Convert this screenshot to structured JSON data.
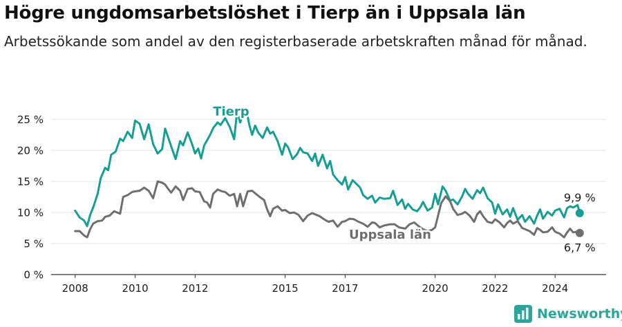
{
  "title": "Högre ungdomsarbetslöshet i Tierp än i Uppsala län",
  "subtitle": "Arbetssökande som andel av den registerbaserade arbetskraften månad för månad.",
  "brand": "Newsworthy",
  "colors": {
    "tierp": "#159e94",
    "uppsala": "#6e6e6e",
    "grid": "#e3e3e3",
    "axis": "#333333",
    "brand": "#2aa69a"
  },
  "chart_data": {
    "type": "line",
    "title": "Högre ungdomsarbetslöshet i Tierp än i Uppsala län",
    "xlabel": "",
    "ylabel": "",
    "xlim": [
      2007.2,
      2025.7
    ],
    "ylim": [
      0,
      27
    ],
    "y_ticks": [
      0,
      5,
      10,
      15,
      20,
      25
    ],
    "y_tick_labels": [
      "0 %",
      "5 %",
      "10 %",
      "15 %",
      "20 %",
      "25 %"
    ],
    "x_ticks": [
      2008,
      2010,
      2012,
      2015,
      2017,
      2020,
      2022,
      2024
    ],
    "x_tick_labels": [
      "2008",
      "2010",
      "2012",
      "2015",
      "2017",
      "2020",
      "2022",
      "2024"
    ],
    "series": [
      {
        "name": "Tierp",
        "label": "Tierp",
        "end_label": "9,9 %",
        "x": [
          2008.0,
          2008.15,
          2008.3,
          2008.4,
          2008.5,
          2008.6,
          2008.75,
          2008.85,
          2009.0,
          2009.1,
          2009.2,
          2009.35,
          2009.5,
          2009.6,
          2009.75,
          2009.9,
          2010.0,
          2010.15,
          2010.3,
          2010.45,
          2010.6,
          2010.75,
          2010.9,
          2011.0,
          2011.1,
          2011.2,
          2011.35,
          2011.5,
          2011.6,
          2011.75,
          2011.9,
          2012.0,
          2012.1,
          2012.2,
          2012.3,
          2012.5,
          2012.6,
          2012.75,
          2012.85,
          2013.0,
          2013.15,
          2013.3,
          2013.4,
          2013.5,
          2013.7,
          2013.8,
          2013.9,
          2014.0,
          2014.1,
          2014.25,
          2014.4,
          2014.5,
          2014.6,
          2014.75,
          2014.9,
          2015.0,
          2015.1,
          2015.25,
          2015.4,
          2015.5,
          2015.6,
          2015.75,
          2015.9,
          2016.0,
          2016.1,
          2016.25,
          2016.4,
          2016.5,
          2016.6,
          2016.75,
          2016.9,
          2017.0,
          2017.1,
          2017.25,
          2017.4,
          2017.5,
          2017.6,
          2017.75,
          2017.9,
          2018.0,
          2018.15,
          2018.3,
          2018.5,
          2018.6,
          2018.75,
          2018.9,
          2019.0,
          2019.1,
          2019.25,
          2019.4,
          2019.5,
          2019.6,
          2019.75,
          2019.9,
          2020.0,
          2020.1,
          2020.25,
          2020.35,
          2020.5,
          2020.6,
          2020.75,
          2020.9,
          2021.0,
          2021.1,
          2021.25,
          2021.4,
          2021.5,
          2021.6,
          2021.75,
          2021.9,
          2022.0,
          2022.1,
          2022.25,
          2022.4,
          2022.5,
          2022.6,
          2022.75,
          2022.9,
          2023.0,
          2023.15,
          2023.3,
          2023.4,
          2023.5,
          2023.6,
          2023.75,
          2023.9,
          2024.0,
          2024.15,
          2024.3,
          2024.4,
          2024.5,
          2024.6,
          2024.75,
          2024.82
        ],
        "values": [
          10.3,
          9.2,
          8.7,
          7.8,
          9.6,
          10.8,
          13.0,
          15.5,
          17.2,
          16.8,
          19.3,
          19.8,
          21.9,
          21.5,
          23.0,
          22.0,
          24.8,
          24.3,
          21.8,
          24.2,
          21.0,
          19.5,
          20.2,
          23.5,
          22.1,
          20.7,
          18.6,
          21.5,
          20.8,
          22.9,
          21.0,
          19.5,
          20.3,
          18.7,
          20.8,
          22.5,
          23.6,
          24.5,
          24.1,
          25.2,
          23.8,
          21.8,
          26.3,
          24.5,
          26.8,
          24.2,
          22.5,
          24.0,
          22.9,
          22.0,
          23.7,
          22.7,
          23.0,
          21.5,
          19.3,
          21.1,
          20.5,
          18.6,
          19.4,
          20.4,
          19.7,
          19.5,
          18.3,
          19.5,
          17.5,
          19.3,
          17.1,
          18.3,
          16.1,
          15.2,
          14.5,
          15.7,
          13.7,
          15.2,
          14.5,
          14.0,
          12.8,
          12.2,
          12.7,
          11.6,
          12.4,
          12.2,
          12.3,
          13.5,
          11.2,
          12.1,
          10.6,
          11.4,
          10.5,
          10.2,
          10.8,
          11.7,
          10.3,
          10.8,
          13.0,
          11.3,
          14.2,
          13.5,
          11.9,
          12.1,
          11.3,
          12.6,
          13.8,
          13.0,
          12.2,
          13.6,
          13.1,
          14.0,
          12.3,
          11.6,
          9.8,
          11.3,
          9.7,
          10.5,
          9.3,
          10.7,
          8.8,
          9.6,
          8.5,
          9.4,
          8.2,
          9.5,
          10.5,
          9.0,
          10.1,
          9.5,
          10.3,
          10.6,
          9.2,
          10.7,
          11.0,
          10.8,
          11.2,
          9.9
        ]
      },
      {
        "name": "Uppsala län",
        "label": "Uppsala län",
        "end_label": "6,7 %",
        "x": [
          2008.0,
          2008.15,
          2008.3,
          2008.4,
          2008.5,
          2008.6,
          2008.75,
          2008.9,
          2009.0,
          2009.15,
          2009.3,
          2009.5,
          2009.6,
          2009.75,
          2009.9,
          2010.0,
          2010.15,
          2010.3,
          2010.45,
          2010.6,
          2010.75,
          2010.9,
          2011.0,
          2011.1,
          2011.2,
          2011.35,
          2011.5,
          2011.6,
          2011.75,
          2011.9,
          2012.0,
          2012.15,
          2012.3,
          2012.4,
          2012.5,
          2012.6,
          2012.75,
          2012.9,
          2013.0,
          2013.15,
          2013.3,
          2013.4,
          2013.5,
          2013.6,
          2013.75,
          2013.9,
          2014.0,
          2014.15,
          2014.3,
          2014.4,
          2014.5,
          2014.6,
          2014.75,
          2014.9,
          2015.0,
          2015.15,
          2015.3,
          2015.45,
          2015.6,
          2015.75,
          2015.9,
          2016.0,
          2016.15,
          2016.3,
          2016.45,
          2016.6,
          2016.75,
          2016.9,
          2017.0,
          2017.15,
          2017.3,
          2017.45,
          2017.6,
          2017.75,
          2017.9,
          2018.0,
          2018.15,
          2018.3,
          2018.5,
          2018.65,
          2018.8,
          2019.0,
          2019.15,
          2019.3,
          2019.45,
          2019.6,
          2019.75,
          2019.9,
          2020.0,
          2020.1,
          2020.2,
          2020.35,
          2020.5,
          2020.6,
          2020.75,
          2020.9,
          2021.0,
          2021.15,
          2021.3,
          2021.4,
          2021.5,
          2021.6,
          2021.75,
          2021.9,
          2022.0,
          2022.15,
          2022.3,
          2022.4,
          2022.5,
          2022.6,
          2022.75,
          2022.9,
          2023.0,
          2023.15,
          2023.3,
          2023.4,
          2023.5,
          2023.6,
          2023.75,
          2023.9,
          2024.0,
          2024.15,
          2024.3,
          2024.4,
          2024.5,
          2024.6,
          2024.75,
          2024.82
        ],
        "values": [
          7.0,
          7.0,
          6.3,
          6.0,
          7.3,
          8.2,
          8.6,
          8.7,
          9.3,
          9.5,
          10.2,
          9.8,
          12.5,
          12.8,
          13.3,
          13.4,
          13.5,
          14.0,
          13.5,
          12.3,
          15.0,
          14.8,
          14.5,
          13.8,
          13.2,
          14.2,
          13.5,
          12.0,
          13.8,
          13.9,
          13.4,
          13.3,
          11.8,
          11.6,
          10.8,
          13.0,
          13.7,
          13.4,
          13.3,
          12.7,
          13.0,
          11.0,
          13.0,
          11.0,
          13.4,
          13.5,
          13.1,
          12.5,
          12.0,
          10.5,
          9.4,
          10.6,
          11.0,
          10.3,
          10.4,
          9.9,
          10.0,
          9.6,
          8.6,
          9.5,
          9.9,
          9.7,
          9.4,
          8.9,
          8.5,
          8.7,
          7.7,
          8.5,
          8.6,
          9.0,
          8.9,
          8.5,
          8.2,
          7.7,
          8.4,
          8.3,
          7.6,
          7.9,
          8.1,
          8.1,
          7.6,
          7.4,
          8.1,
          8.4,
          7.8,
          7.3,
          7.0,
          7.2,
          7.6,
          9.5,
          11.5,
          12.6,
          11.8,
          10.6,
          9.6,
          9.8,
          10.1,
          9.5,
          8.5,
          9.7,
          10.2,
          9.4,
          8.5,
          8.3,
          8.9,
          8.4,
          7.6,
          8.3,
          8.7,
          8.2,
          8.6,
          7.5,
          7.3,
          7.0,
          6.4,
          7.5,
          7.2,
          6.8,
          6.9,
          7.6,
          6.9,
          6.6,
          6.0,
          6.8,
          7.4,
          6.8,
          6.9,
          6.7
        ]
      }
    ]
  }
}
